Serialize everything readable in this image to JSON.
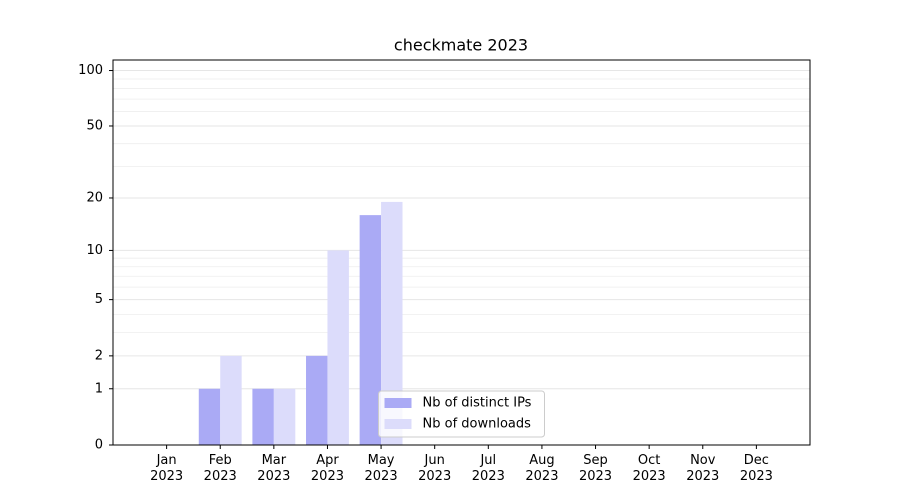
{
  "chart_data": {
    "type": "bar",
    "title": "checkmate 2023",
    "categories": [
      "Jan\n2023",
      "Feb\n2023",
      "Mar\n2023",
      "Apr\n2023",
      "May\n2023",
      "Jun\n2023",
      "Jul\n2023",
      "Aug\n2023",
      "Sep\n2023",
      "Oct\n2023",
      "Nov\n2023",
      "Dec\n2023"
    ],
    "series": [
      {
        "name": "Nb of distinct IPs",
        "color": "#aaaaf5",
        "values": [
          0,
          1,
          1,
          2,
          16,
          0,
          0,
          0,
          0,
          0,
          0,
          0
        ]
      },
      {
        "name": "Nb of downloads",
        "color": "#dcdcfb",
        "values": [
          0,
          2,
          1,
          10,
          19,
          0,
          0,
          0,
          0,
          0,
          0,
          0
        ]
      }
    ],
    "yscale": "log1p",
    "ylim": [
      0,
      114
    ],
    "yticks": [
      0,
      1,
      2,
      5,
      10,
      20,
      50,
      100
    ],
    "minor_yticks": [
      3,
      4,
      6,
      7,
      8,
      9,
      30,
      40,
      60,
      70,
      80,
      90
    ],
    "grid": true,
    "legend": "lower center"
  }
}
